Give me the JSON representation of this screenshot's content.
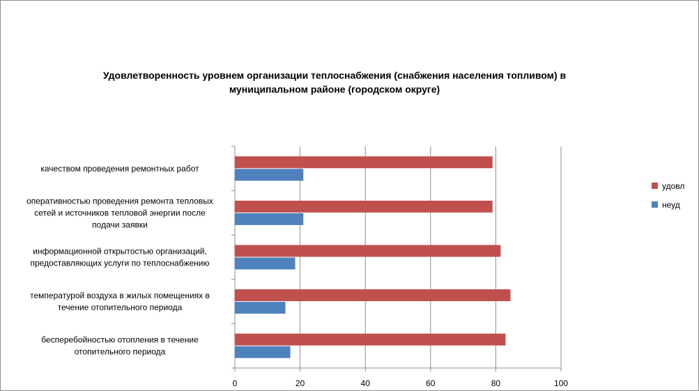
{
  "chart_data": {
    "type": "bar",
    "orientation": "horizontal",
    "title_lines": [
      "Удовлетворенность уровнем организации теплоснабжения (снабжения населения топливом) в",
      "муниципальном районе (городском округе)"
    ],
    "categories": [
      [
        "качеством проведения ремонтных работ"
      ],
      [
        "оперативностью проведения ремонта тепловых",
        "сетей и источников тепловой энергии после",
        "подачи заявки"
      ],
      [
        "информационной открытостью организаций,",
        "предоставляющих услуги по теплоснабжению"
      ],
      [
        "температурой воздуха в жилых помещениях в",
        "течение отопительного периода"
      ],
      [
        "бесперебойностью отопления в течение",
        "отопительного периода"
      ]
    ],
    "series": [
      {
        "name": "удовл",
        "color": "#c0504d",
        "values": [
          79,
          79,
          81.5,
          84.5,
          83
        ]
      },
      {
        "name": "неуд",
        "color": "#4f81bd",
        "values": [
          21,
          21,
          18.5,
          15.5,
          17
        ]
      }
    ],
    "xlim": [
      0,
      100
    ],
    "xticks": [
      "0",
      "20",
      "40",
      "60",
      "80",
      "100"
    ],
    "grid": true,
    "legend_position": "right"
  }
}
